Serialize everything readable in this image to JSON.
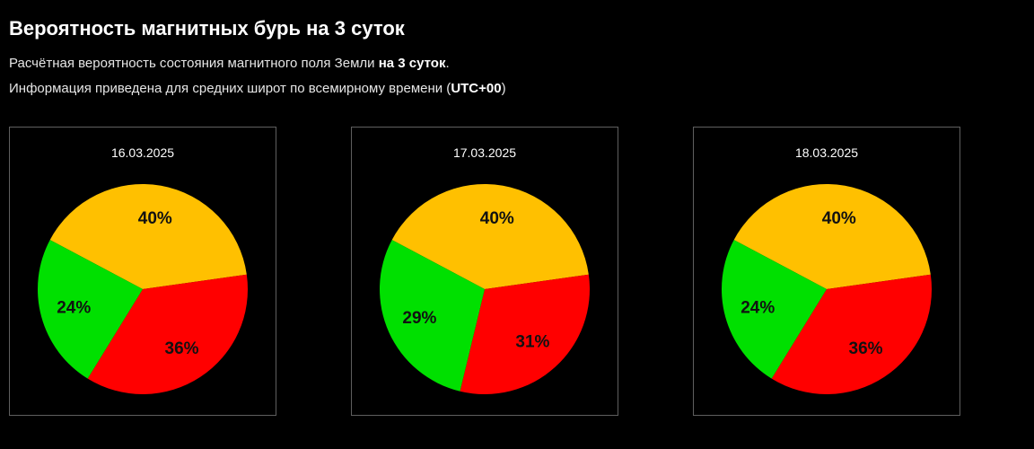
{
  "header": {
    "title": "Вероятность магнитных бурь на 3 суток",
    "line1_text": "Расчётная вероятность состояния магнитного поля Земли ",
    "line1_bold": "на 3 суток",
    "line1_end": ".",
    "line2_text": "Информация приведена для средних широт по всемирному времени (",
    "line2_bold": "UTC+00",
    "line2_end": ")"
  },
  "colors": {
    "green": "#00e000",
    "yellow": "#ffc000",
    "red": "#ff0000",
    "background": "#000000"
  },
  "chart_data": [
    {
      "type": "pie",
      "title": "16.03.2025",
      "slices": [
        {
          "value": 40,
          "label": "40%",
          "color": "#ffc000"
        },
        {
          "value": 36,
          "label": "36%",
          "color": "#ff0000"
        },
        {
          "value": 24,
          "label": "24%",
          "color": "#00e000"
        }
      ]
    },
    {
      "type": "pie",
      "title": "17.03.2025",
      "slices": [
        {
          "value": 40,
          "label": "40%",
          "color": "#ffc000"
        },
        {
          "value": 31,
          "label": "31%",
          "color": "#ff0000"
        },
        {
          "value": 29,
          "label": "29%",
          "color": "#00e000"
        }
      ]
    },
    {
      "type": "pie",
      "title": "18.03.2025",
      "slices": [
        {
          "value": 40,
          "label": "40%",
          "color": "#ffc000"
        },
        {
          "value": 36,
          "label": "36%",
          "color": "#ff0000"
        },
        {
          "value": 24,
          "label": "24%",
          "color": "#00e000"
        }
      ]
    }
  ]
}
